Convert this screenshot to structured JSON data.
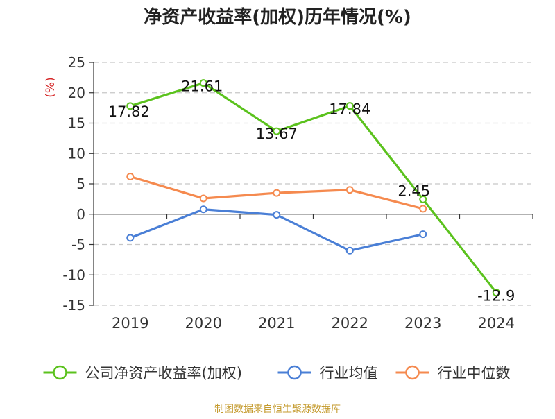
{
  "chart_data": {
    "type": "line",
    "title": "净资产收益率(加权)历年情况(%)",
    "ylabel": "(%)",
    "xlabel": "",
    "categories": [
      "2019",
      "2020",
      "2021",
      "2022",
      "2023",
      "2024"
    ],
    "ylim": [
      -15,
      25
    ],
    "yticks": [
      25,
      20,
      15,
      10,
      5,
      0,
      -5,
      -10,
      -15
    ],
    "grid": true,
    "legend_position": "bottom",
    "series": [
      {
        "name": "公司净资产收益率(加权)",
        "color": "#5bc21d",
        "values": [
          17.82,
          21.61,
          13.67,
          17.84,
          2.45,
          -12.9
        ],
        "labels": [
          "17.82",
          "21.61",
          "13.67",
          "17.84",
          "2.45",
          "-12.9"
        ]
      },
      {
        "name": "行业均值",
        "color": "#4a7fd6",
        "values": [
          -3.9,
          0.8,
          -0.1,
          -6.0,
          -3.3,
          null
        ]
      },
      {
        "name": "行业中位数",
        "color": "#f58a4f",
        "values": [
          6.2,
          2.6,
          3.5,
          4.0,
          0.9,
          null
        ]
      }
    ],
    "source": "制图数据来自恒生聚源数据库"
  }
}
